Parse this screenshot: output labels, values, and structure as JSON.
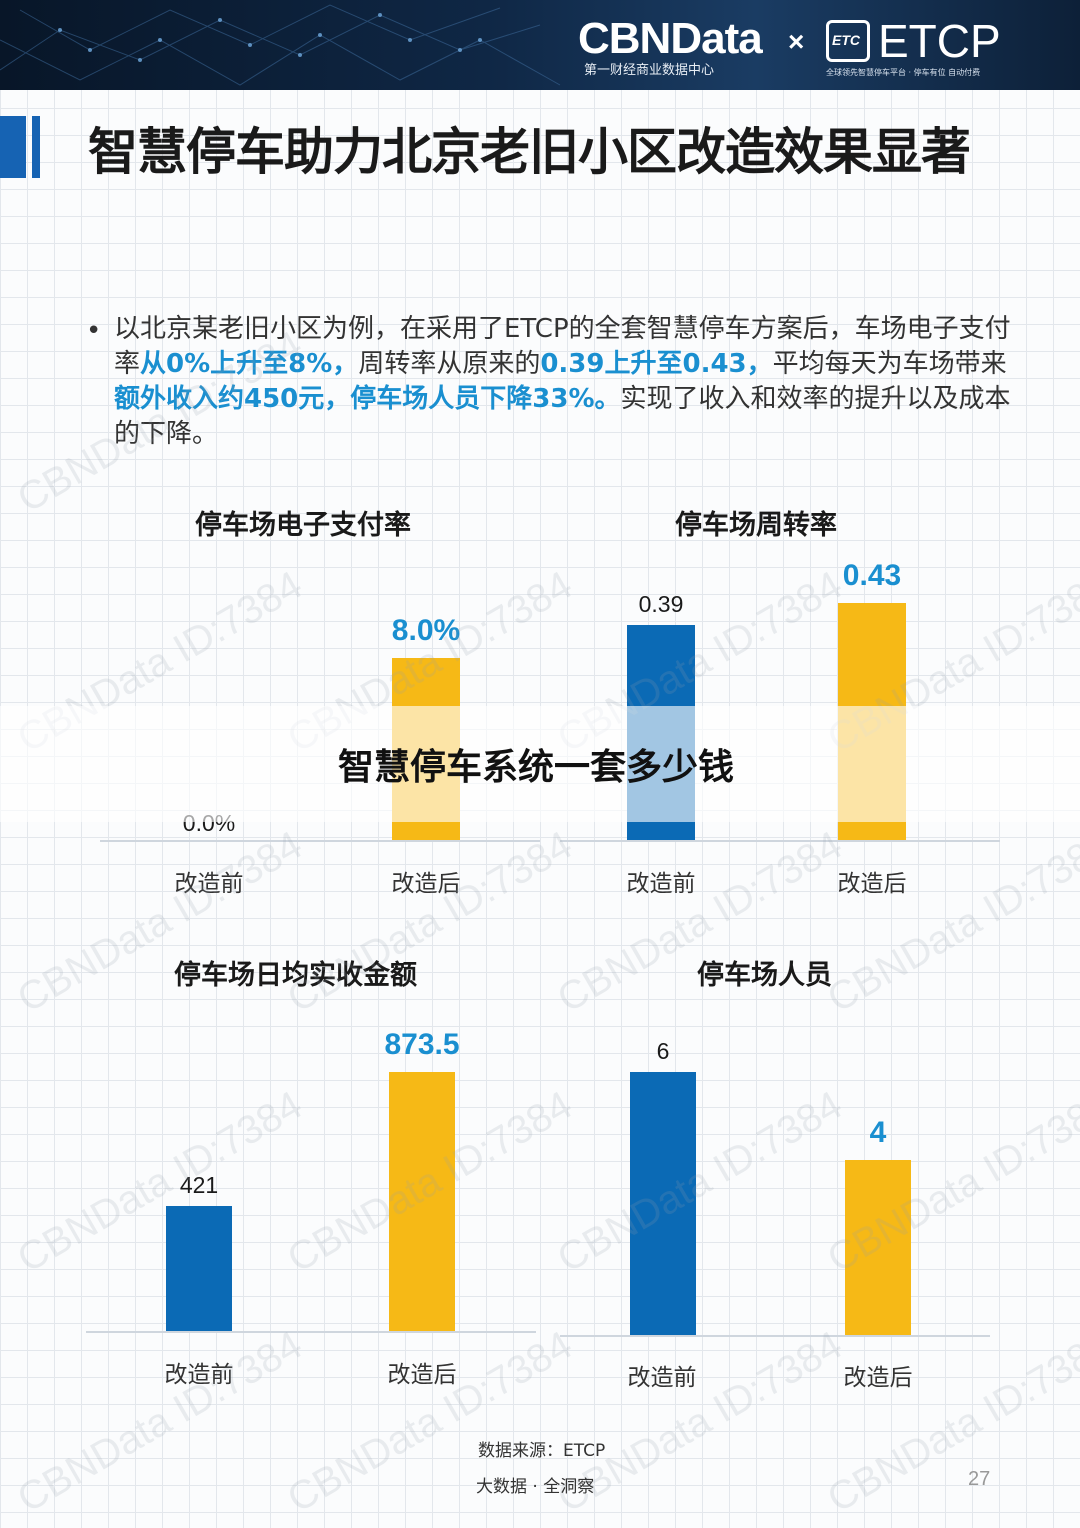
{
  "header": {
    "brand": "CBNData",
    "brand_sub": "第一财经商业数据中心",
    "times": "×",
    "logo_mark": "ETC",
    "partner": "ETCP",
    "partner_sub": "全球领先智慧停车平台 · 停车有位 自动付费"
  },
  "title": "智慧停车助力北京老旧小区改造效果显著",
  "paragraph": {
    "bullet": "•",
    "t1": "以北京某老旧小区为例，在采用了ETCP的全套智慧停车方案后，车场电子支付率",
    "h1": "从0%上升至8%，",
    "t2": "周转率从原来的",
    "h2": "0.39上升至0.43，",
    "t3": "平均每天为车场带来",
    "h3": "额外收入约450元，停车场人员下降33%。",
    "t4": "实现了收入和效率的提升以及成本的下降。"
  },
  "chart_data": [
    {
      "type": "bar",
      "title": "停车场电子支付率",
      "categories": [
        "改造前",
        "改造后"
      ],
      "values": [
        0.0,
        8.0
      ],
      "value_labels": [
        "0.0%",
        "8.0%"
      ],
      "colors": [
        "#0b6ab5",
        "#f6b916"
      ]
    },
    {
      "type": "bar",
      "title": "停车场周转率",
      "categories": [
        "改造前",
        "改造后"
      ],
      "values": [
        0.39,
        0.43
      ],
      "value_labels": [
        "0.39",
        "0.43"
      ],
      "colors": [
        "#0b6ab5",
        "#f6b916"
      ]
    },
    {
      "type": "bar",
      "title": "停车场日均实收金额",
      "categories": [
        "改造前",
        "改造后"
      ],
      "values": [
        421,
        873.5
      ],
      "value_labels": [
        "421",
        "873.5"
      ],
      "colors": [
        "#0b6ab5",
        "#f6b916"
      ]
    },
    {
      "type": "bar",
      "title": "停车场人员",
      "categories": [
        "改造前",
        "改造后"
      ],
      "values": [
        6,
        4
      ],
      "value_labels": [
        "6",
        "4"
      ],
      "colors": [
        "#0b6ab5",
        "#f6b916"
      ]
    }
  ],
  "overlay_text": "智慧停车系统一套多少钱",
  "footer": {
    "source": "数据来源：ETCP",
    "tagline": "大数据 · 全洞察",
    "page_number": "27"
  },
  "watermark": "CBNData ID:7384"
}
